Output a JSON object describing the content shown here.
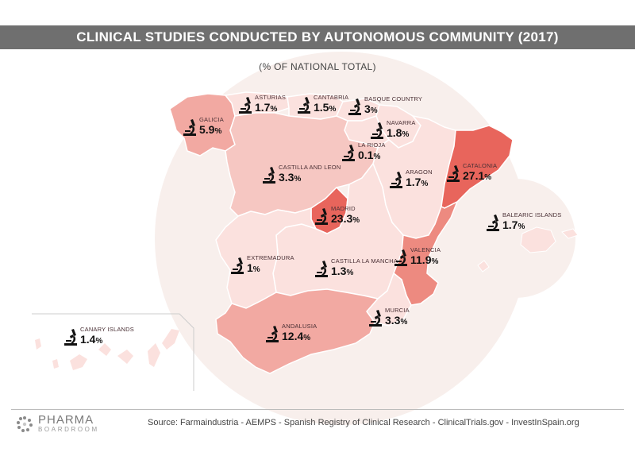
{
  "title": "CLINICAL STUDIES CONDUCTED BY AUTONOMOUS COMMUNITY (2017)",
  "subtitle": "(% OF NATIONAL TOTAL)",
  "source": "Source:  Farmaindustria - AEMPS - Spanish Registry of Clinical Research - ClinicalTrials.gov - InvestInSpain.org",
  "logo": {
    "top": "PHARMA",
    "bottom": "BOARDROOM"
  },
  "regions": [
    {
      "name": "GALICIA",
      "value": "5.9",
      "unit": "%"
    },
    {
      "name": "ASTURIAS",
      "value": "1.7",
      "unit": "%"
    },
    {
      "name": "CANTABRIA",
      "value": "1.5",
      "unit": "%"
    },
    {
      "name": "BASQUE COUNTRY",
      "value": "3",
      "unit": "%"
    },
    {
      "name": "NAVARRA",
      "value": "1.8",
      "unit": "%"
    },
    {
      "name": "LA RIOJA",
      "value": "0.1",
      "unit": "%"
    },
    {
      "name": "CASTILLA AND LEON",
      "value": "3.3",
      "unit": "%"
    },
    {
      "name": "ARAGON",
      "value": "1.7",
      "unit": "%"
    },
    {
      "name": "CATALONIA",
      "value": "27.1",
      "unit": "%"
    },
    {
      "name": "MADRID",
      "value": "23.3",
      "unit": "%"
    },
    {
      "name": "BALEARIC ISLANDS",
      "value": "1.7",
      "unit": "%"
    },
    {
      "name": "EXTREMADURA",
      "value": "1",
      "unit": "%"
    },
    {
      "name": "CASTILLA LA MANCHA",
      "value": "1.3",
      "unit": "%"
    },
    {
      "name": "VALENCIA",
      "value": "11.9",
      "unit": "%"
    },
    {
      "name": "MURCIA",
      "value": "3.3",
      "unit": "%"
    },
    {
      "name": "ANDALUSIA",
      "value": "12.4",
      "unit": "%"
    },
    {
      "name": "CANARY ISLANDS",
      "value": "1.4",
      "unit": "%"
    }
  ],
  "colors": {
    "title_bar": "#6f6f6f",
    "background_circle": "#f8efec",
    "lightest": "#fbe1de",
    "light": "#f6c7c2",
    "medium": "#f2a9a2",
    "strong": "#ed8a80",
    "darkest": "#e8655c",
    "border": "#ffffff"
  }
}
